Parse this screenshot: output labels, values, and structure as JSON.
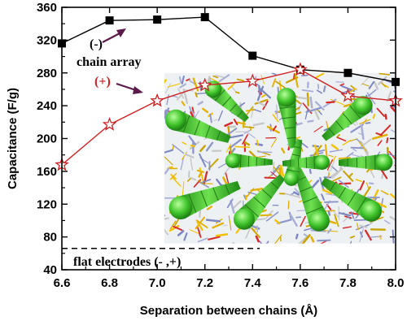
{
  "chart_data": {
    "type": "line",
    "xlabel": "Separation between chains (Å)",
    "ylabel": "Capacitance (F/g)",
    "x_ticks": [
      "6.6",
      "6.8",
      "7.0",
      "7.2",
      "7.4",
      "7.6",
      "7.8",
      "8.0"
    ],
    "y_ticks": [
      "40",
      "80",
      "120",
      "160",
      "200",
      "240",
      "280",
      "320",
      "360"
    ],
    "xlim": [
      6.6,
      8.0
    ],
    "ylim": [
      40,
      360
    ],
    "grid": false,
    "series": [
      {
        "name": "(-)",
        "color": "#000000",
        "marker": "filled-square",
        "x": [
          6.6,
          6.8,
          7.0,
          7.2,
          7.4,
          7.6,
          7.8,
          8.0
        ],
        "y": [
          316,
          344,
          345,
          348,
          301,
          284,
          280,
          269
        ]
      },
      {
        "name": "(+)",
        "color": "#cc2222",
        "marker": "hollow-star",
        "x": [
          6.6,
          6.8,
          7.0,
          7.2,
          7.4,
          7.6,
          7.8,
          8.0
        ],
        "y": [
          168,
          217,
          246,
          265,
          270,
          284,
          252,
          246
        ]
      }
    ],
    "reference_line": {
      "label": "flat electrodes (- ,+)",
      "y": 66,
      "style": "dashed",
      "x_end": 7.43
    },
    "annotations": {
      "minus_label": "(-)",
      "chain_array": "chain array",
      "plus_label": "(+)"
    },
    "inset": {
      "description_icon": "molecular-snapshot-image",
      "x_range": [
        7.03,
        8.0
      ],
      "y_range": [
        72,
        280
      ]
    }
  }
}
